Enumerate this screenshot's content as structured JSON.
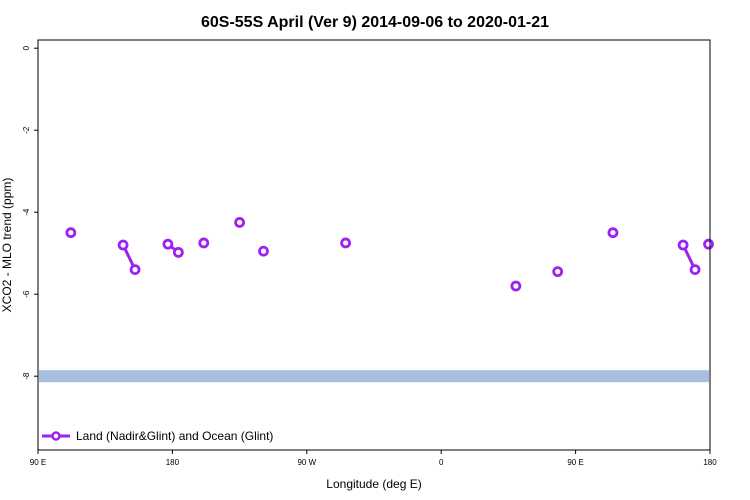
{
  "chart_data": {
    "type": "line",
    "title": "60S-55S April (Ver 9)   2014-09-06 to 2020-01-21",
    "xlabel": "Longitude (deg E)",
    "ylabel": "XCO2 - MLO trend (ppm)",
    "xlim": [
      90,
      450
    ],
    "ylim": [
      -9.8,
      0.2
    ],
    "x_ticks": [
      {
        "value": 90,
        "label": "90 E"
      },
      {
        "value": 180,
        "label": "180"
      },
      {
        "value": 270,
        "label": "90 W"
      },
      {
        "value": 360,
        "label": "0"
      },
      {
        "value": 450,
        "label": "90 E"
      },
      {
        "value": 540,
        "label": "180"
      }
    ],
    "y_ticks": [
      {
        "value": 0,
        "label": "0"
      },
      {
        "value": -2,
        "label": "-2"
      },
      {
        "value": -4,
        "label": "-4"
      },
      {
        "value": -6,
        "label": "-6"
      },
      {
        "value": -8,
        "label": "-8"
      }
    ],
    "x_display_range": [
      90,
      540
    ],
    "grid": false,
    "legend_position": "bottom-left",
    "series": [
      {
        "name": "Land (Nadir&Glint) and Ocean (Glint)",
        "color": "#a020f0",
        "segments": [
          [
            {
              "x": 112,
              "y": -4.5
            }
          ],
          [
            {
              "x": 147,
              "y": -4.8
            },
            {
              "x": 155,
              "y": -5.4
            }
          ],
          [
            {
              "x": 177,
              "y": -4.78
            },
            {
              "x": 184,
              "y": -4.98
            }
          ],
          [
            {
              "x": 201,
              "y": -4.75
            }
          ],
          [
            {
              "x": 225,
              "y": -4.25
            }
          ],
          [
            {
              "x": 241,
              "y": -4.95
            }
          ],
          [
            {
              "x": 296,
              "y": -4.75
            }
          ],
          [
            {
              "x": 410,
              "y": -5.8
            }
          ],
          [
            {
              "x": 438,
              "y": -5.45
            }
          ],
          [
            {
              "x": 475,
              "y": -4.5
            }
          ],
          [
            {
              "x": 522,
              "y": -4.8
            },
            {
              "x": 530,
              "y": -5.4
            }
          ],
          [
            {
              "x": 539,
              "y": -4.78
            }
          ]
        ]
      }
    ],
    "reference_band": {
      "y": -8.0,
      "color": "#a8bde0"
    }
  }
}
